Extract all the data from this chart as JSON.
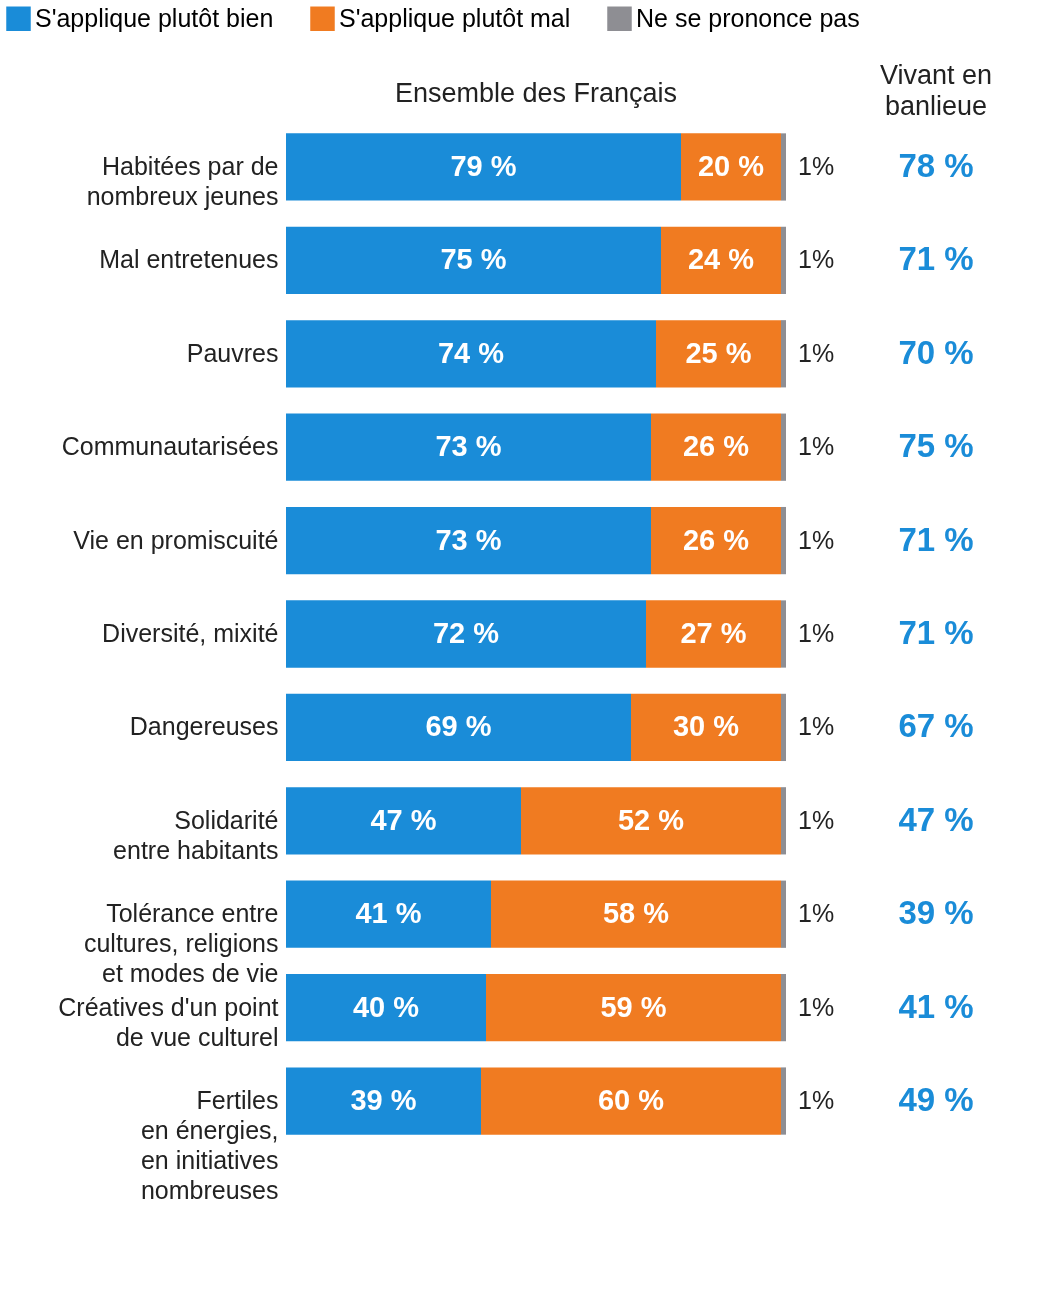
{
  "chart_data": {
    "type": "bar",
    "orientation": "horizontal",
    "stacked": true,
    "legend": "top left",
    "grid": false,
    "categories": [
      "Habitées par de\nnombreux jeunes",
      "Mal entretenues",
      "Pauvres",
      "Communautarisées",
      "Vie en promiscuité",
      "Diversité, mixité",
      "Dangereuses",
      "Solidarité\nentre habitants",
      "Tolérance entre\ncultures, religions\net modes de vie",
      "Créatives d'un point\nde vue culturel",
      "Fertiles\nen énergies,\nen initiatives\nnombreuses"
    ],
    "series": [
      {
        "name": "S'applique plutôt bien",
        "color": "#1a8cd8",
        "values": [
          79,
          75,
          74,
          73,
          73,
          72,
          69,
          47,
          41,
          40,
          39
        ],
        "value_labels": [
          "79 %",
          "75 %",
          "74 %",
          "73 %",
          "73 %",
          "72 %",
          "69 %",
          "47 %",
          "41 %",
          "40 %",
          "39 %"
        ]
      },
      {
        "name": "S'applique plutôt mal",
        "color": "#f07b21",
        "values": [
          20,
          24,
          25,
          26,
          26,
          27,
          30,
          52,
          58,
          59,
          60
        ],
        "value_labels": [
          "20 %",
          "24 %",
          "25 %",
          "26 %",
          "26 %",
          "27 %",
          "30 %",
          "52 %",
          "58 %",
          "59 %",
          "60 %"
        ]
      },
      {
        "name": "Ne se prononce pas",
        "color": "#8e8e93",
        "values": [
          1,
          1,
          1,
          1,
          1,
          1,
          1,
          1,
          1,
          1,
          1
        ],
        "value_labels": [
          "1%",
          "1%",
          "1%",
          "1%",
          "1%",
          "1%",
          "1%",
          "1%",
          "1%",
          "1%",
          "1%"
        ]
      }
    ],
    "annotations": [
      "Ensemble des Français",
      "Vivant en banlieue",
      "78 %",
      "71 %",
      "70 %",
      "75 %",
      "71 %",
      "71 %",
      "67 %",
      "47 %",
      "39 %",
      "41 %",
      "49 %"
    ]
  }
}
